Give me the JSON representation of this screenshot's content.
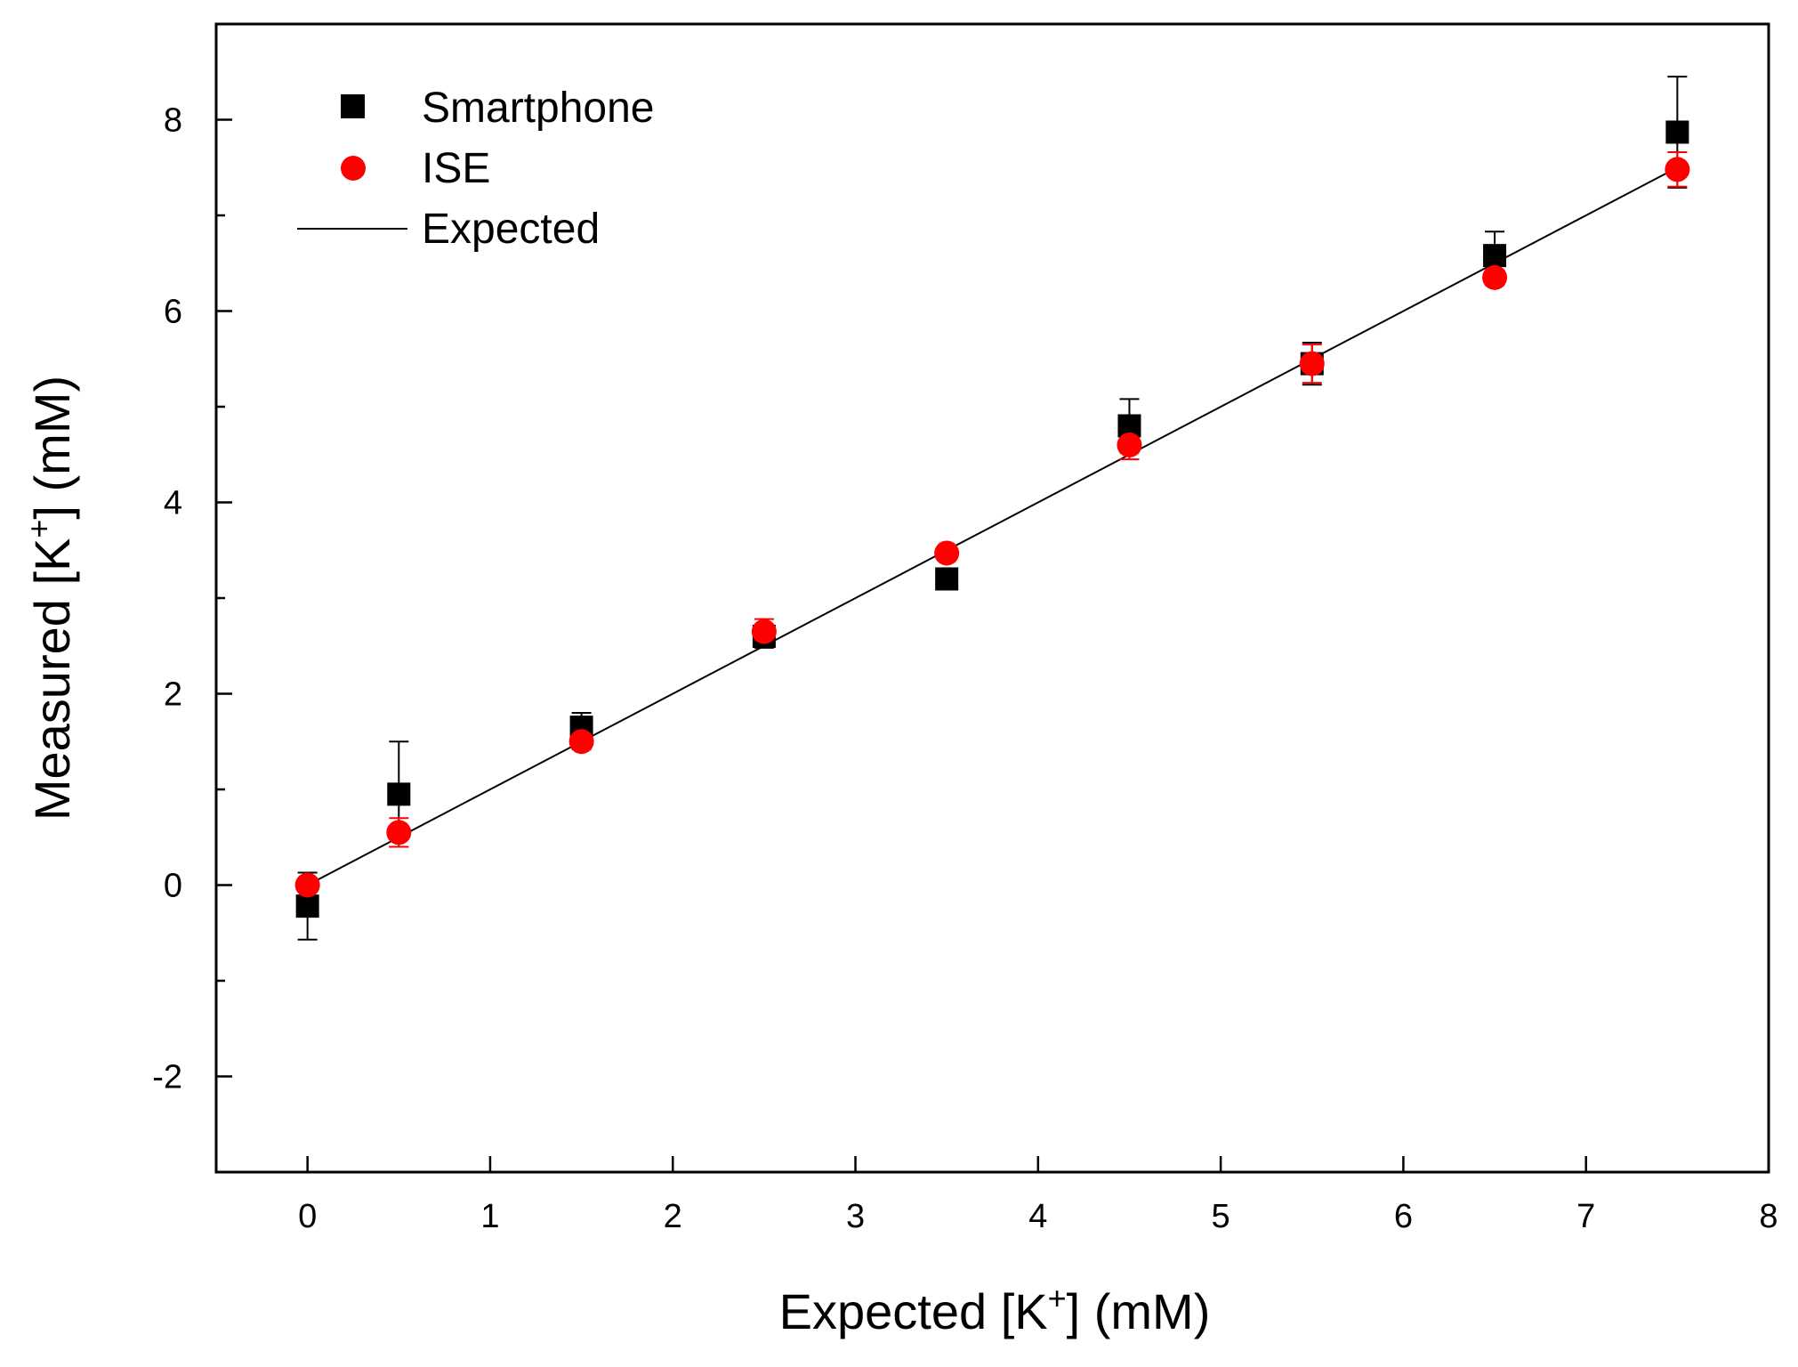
{
  "chart_data": {
    "type": "scatter",
    "title": "",
    "xlabel": {
      "prefix": "Expected [K",
      "sup": "+",
      "suffix": "] (mM)"
    },
    "ylabel": {
      "prefix": "Measured [K",
      "sup": "+",
      "suffix": "] (mM)"
    },
    "xlim": [
      -0.5,
      8
    ],
    "ylim": [
      -3,
      9
    ],
    "xticks": [
      0,
      1,
      2,
      3,
      4,
      5,
      6,
      7,
      8
    ],
    "xtick_labels": [
      "0",
      "1",
      "2",
      "3",
      "4",
      "5",
      "6",
      "7",
      "8"
    ],
    "yticks": [
      -2,
      0,
      2,
      4,
      6,
      8
    ],
    "ytick_labels": [
      "-2",
      "0",
      "2",
      "4",
      "6",
      "8"
    ],
    "yminor_ticks": [
      -1,
      1,
      3,
      5,
      7
    ],
    "grid": false,
    "legend_position": "top-left",
    "series": [
      {
        "name": "Smartphone",
        "marker": "square",
        "color": "#000000",
        "x": [
          0,
          0.5,
          1.5,
          2.5,
          3.5,
          4.5,
          5.5,
          6.5,
          7.5
        ],
        "y": [
          -0.22,
          0.95,
          1.65,
          2.6,
          3.2,
          4.8,
          5.45,
          6.58,
          7.87
        ],
        "err": [
          0.35,
          0.55,
          0.15,
          0.12,
          0.1,
          0.28,
          0.22,
          0.25,
          0.58
        ]
      },
      {
        "name": "ISE",
        "marker": "circle",
        "color": "#ff0000",
        "x": [
          0,
          0.5,
          1.5,
          2.5,
          3.5,
          4.5,
          5.5,
          6.5,
          7.5
        ],
        "y": [
          0.0,
          0.55,
          1.5,
          2.65,
          3.47,
          4.6,
          5.45,
          6.35,
          7.48
        ],
        "err": [
          0.05,
          0.15,
          0.08,
          0.13,
          0.05,
          0.15,
          0.2,
          0.08,
          0.18
        ]
      },
      {
        "name": "Expected",
        "type": "line",
        "color": "#000000",
        "x": [
          0,
          7.5
        ],
        "y": [
          0,
          7.5
        ]
      }
    ]
  }
}
